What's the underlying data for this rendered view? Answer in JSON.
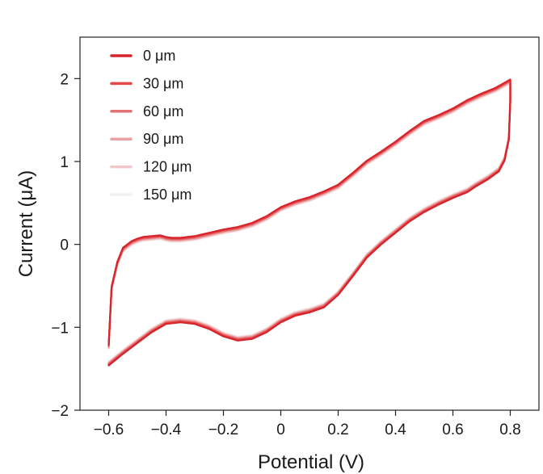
{
  "chart_data": {
    "type": "line",
    "title": "",
    "xlabel": "Potential (V)",
    "ylabel": "Current (μA)",
    "xlim": [
      -0.7,
      0.9
    ],
    "ylim": [
      -2.0,
      2.5
    ],
    "xticks": [
      -0.6,
      -0.4,
      -0.2,
      0,
      0.2,
      0.4,
      0.6,
      0.8
    ],
    "xtick_labels": [
      "−0.6",
      "−0.4",
      "−0.2",
      "0",
      "0.2",
      "0.4",
      "0.6",
      "0.8"
    ],
    "yticks": [
      -2,
      -1,
      0,
      1,
      2
    ],
    "ytick_labels": [
      "−2",
      "−1",
      "0",
      "1",
      "2"
    ],
    "grid": false,
    "legend_position": "top-left",
    "forward_scan": {
      "x": [
        -0.6,
        -0.59,
        -0.57,
        -0.55,
        -0.52,
        -0.5,
        -0.48,
        -0.45,
        -0.42,
        -0.4,
        -0.38,
        -0.35,
        -0.3,
        -0.25,
        -0.2,
        -0.15,
        -0.1,
        -0.05,
        0,
        0.05,
        0.1,
        0.15,
        0.2,
        0.25,
        0.3,
        0.35,
        0.4,
        0.45,
        0.5,
        0.55,
        0.6,
        0.65,
        0.7,
        0.75,
        0.8
      ],
      "y": [
        -1.25,
        -0.55,
        -0.25,
        -0.08,
        0,
        0.03,
        0.05,
        0.06,
        0.07,
        0.05,
        0.04,
        0.04,
        0.06,
        0.1,
        0.14,
        0.17,
        0.22,
        0.3,
        0.41,
        0.48,
        0.53,
        0.6,
        0.68,
        0.82,
        0.97,
        1.08,
        1.2,
        1.33,
        1.45,
        1.52,
        1.6,
        1.7,
        1.78,
        1.85,
        1.95
      ]
    },
    "reverse_scan": {
      "x": [
        0.8,
        0.795,
        0.78,
        0.76,
        0.72,
        0.68,
        0.65,
        0.6,
        0.55,
        0.5,
        0.45,
        0.4,
        0.35,
        0.3,
        0.25,
        0.2,
        0.15,
        0.1,
        0.05,
        0,
        -0.05,
        -0.1,
        -0.15,
        -0.2,
        -0.25,
        -0.3,
        -0.35,
        -0.4,
        -0.45,
        -0.5,
        -0.55,
        -0.6
      ],
      "y": [
        1.75,
        1.3,
        1.05,
        0.92,
        0.82,
        0.74,
        0.67,
        0.6,
        0.52,
        0.43,
        0.32,
        0.18,
        0.04,
        -0.12,
        -0.35,
        -0.57,
        -0.72,
        -0.78,
        -0.82,
        -0.9,
        -1.02,
        -1.1,
        -1.12,
        -1.07,
        -0.98,
        -0.92,
        -0.9,
        -0.92,
        -1.02,
        -1.15,
        -1.28,
        -1.42
      ]
    },
    "series": [
      {
        "name": "0 μm",
        "color": "#d7232b",
        "offset": 0.04
      },
      {
        "name": "30 μm",
        "color": "#e24a4a",
        "offset": 0.03
      },
      {
        "name": "60 μm",
        "color": "#e37277",
        "offset": 0.02
      },
      {
        "name": "90 μm",
        "color": "#eca0a2",
        "offset": 0.01
      },
      {
        "name": "120 μm",
        "color": "#f3c7c9",
        "offset": 0.0
      },
      {
        "name": "150 μm",
        "color": "#f4efef",
        "offset": -0.01
      }
    ]
  }
}
